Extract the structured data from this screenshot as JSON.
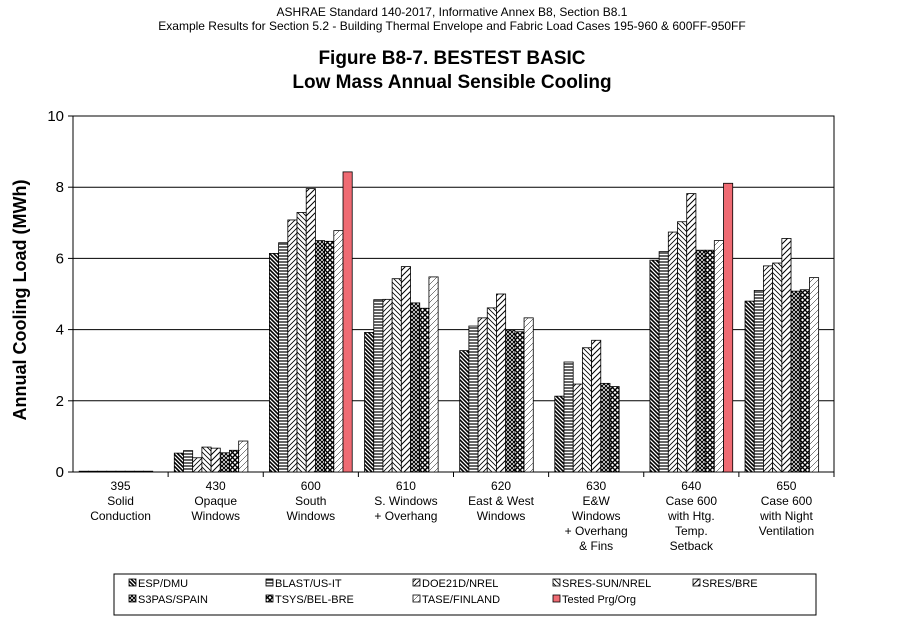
{
  "header": {
    "line1": "ASHRAE Standard 140-2017, Informative Annex B8, Section B8.1",
    "line2": "Example Results for Section 5.2 - Building Thermal Envelope and Fabric Load Cases 195-960 & 600FF-950FF"
  },
  "chart_data": {
    "type": "bar",
    "title": "Figure B8-7.  BESTEST BASIC",
    "subtitle": "Low Mass Annual Sensible Cooling",
    "xlabel": "",
    "ylabel": "Annual Cooling Load (MWh)",
    "ylim": [
      0,
      10
    ],
    "yticks": [
      0,
      2,
      4,
      6,
      8,
      10
    ],
    "grid": true,
    "legend_position": "bottom",
    "categories": [
      [
        "395",
        "Solid",
        "Conduction"
      ],
      [
        "430",
        "Opaque",
        "Windows"
      ],
      [
        "600",
        "South",
        "Windows"
      ],
      [
        "610",
        "S. Windows",
        "+ Overhang"
      ],
      [
        "620",
        "East & West",
        "Windows"
      ],
      [
        "630",
        "E&W",
        "Windows",
        "+ Overhang",
        "& Fins"
      ],
      [
        "640",
        "Case 600",
        "with Htg.",
        "Temp.",
        "Setback"
      ],
      [
        "650",
        "Case 600",
        "with Night",
        "Ventilation"
      ]
    ],
    "series": [
      {
        "name": "ESP/DMU",
        "pattern": "diag-back",
        "values": [
          0.0,
          0.53,
          6.14,
          3.92,
          3.41,
          2.13,
          5.95,
          4.8
        ]
      },
      {
        "name": "BLAST/US-IT",
        "pattern": "horiz",
        "values": [
          0.0,
          0.6,
          6.44,
          4.84,
          4.1,
          3.09,
          6.19,
          5.1
        ]
      },
      {
        "name": "DOE21D/NREL",
        "pattern": "diag-fwd",
        "values": [
          0.0,
          0.4,
          7.08,
          4.85,
          4.33,
          2.47,
          6.74,
          5.79
        ]
      },
      {
        "name": "SRES-SUN/NREL",
        "pattern": "diag-back-wide",
        "values": [
          0.01,
          0.7,
          7.29,
          5.43,
          4.61,
          3.49,
          7.03,
          5.87
        ]
      },
      {
        "name": "SRES/BRE",
        "pattern": "diag-fwd-wide",
        "values": [
          0.01,
          0.67,
          7.96,
          5.77,
          5.0,
          3.7,
          7.82,
          6.56
        ]
      },
      {
        "name": "S3PAS/SPAIN",
        "pattern": "crosshatch",
        "values": [
          0.01,
          0.54,
          6.5,
          4.75,
          3.99,
          2.49,
          6.23,
          5.08
        ]
      },
      {
        "name": "TSYS/BEL-BRE",
        "pattern": "xhatch",
        "values": [
          0.01,
          0.61,
          6.48,
          4.6,
          3.94,
          2.4,
          6.23,
          5.12
        ]
      },
      {
        "name": "TASE/FINLAND",
        "pattern": "diag-light",
        "values": [
          0.01,
          0.87,
          6.78,
          5.48,
          4.33,
          null,
          6.5,
          5.46
        ]
      },
      {
        "name": "Tested Prg/Org",
        "pattern": "solid",
        "color": "#ef6b73",
        "values": [
          null,
          null,
          8.43,
          null,
          null,
          null,
          8.11,
          null
        ]
      }
    ]
  }
}
